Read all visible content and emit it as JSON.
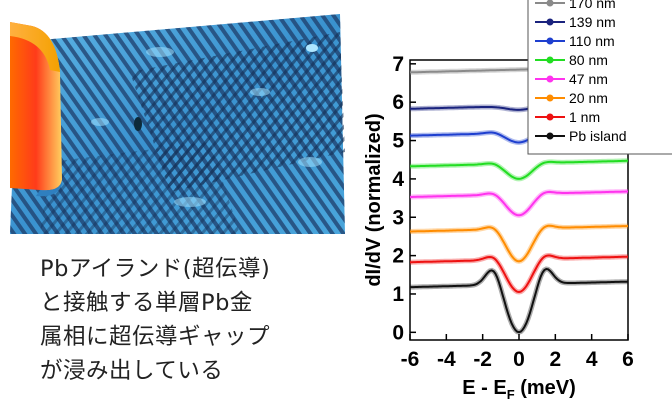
{
  "caption": {
    "lines": [
      "Pbアイランド(超伝導)",
      "と接触する単層Pb金",
      "属相に超伝導ギャップ",
      "が浸み出している"
    ]
  },
  "image": {
    "description_icon": "stm-topography-image"
  },
  "chart_data": {
    "type": "line",
    "xlabel": "E - E",
    "xlabel_sub": "F",
    "xlabel_unit": " (meV)",
    "ylabel": "dI/dV (normalized)",
    "xlim": [
      -6,
      6
    ],
    "ylim": [
      -0.2,
      7.1
    ],
    "xticks": [
      -6,
      -4,
      -2,
      0,
      2,
      4,
      6
    ],
    "yticks": [
      0,
      1,
      2,
      3,
      4,
      5,
      6,
      7
    ],
    "legend_position": "top-right",
    "series": [
      {
        "name": "170 nm",
        "color": "#8a8a8a",
        "offset": 6.85,
        "depth": 0.0,
        "peak": 0.0
      },
      {
        "name": "139 nm",
        "color": "#1a237e",
        "offset": 5.9,
        "depth": 0.1,
        "peak": 0.0
      },
      {
        "name": "110 nm",
        "color": "#1e3fcf",
        "offset": 5.2,
        "depth": 0.25,
        "peak": 0.05
      },
      {
        "name": "80 nm",
        "color": "#22dd22",
        "offset": 4.4,
        "depth": 0.4,
        "peak": 0.05
      },
      {
        "name": "47 nm",
        "color": "#ff33ee",
        "offset": 3.6,
        "depth": 0.55,
        "peak": 0.08
      },
      {
        "name": "20 nm",
        "color": "#ff8c00",
        "offset": 2.7,
        "depth": 0.85,
        "peak": 0.12
      },
      {
        "name": "1 nm",
        "color": "#ee1111",
        "offset": 1.9,
        "depth": 0.85,
        "peak": 0.15
      },
      {
        "name": "Pb island",
        "color": "#111111",
        "offset": 1.25,
        "depth": 1.25,
        "peak": 0.5
      }
    ]
  }
}
